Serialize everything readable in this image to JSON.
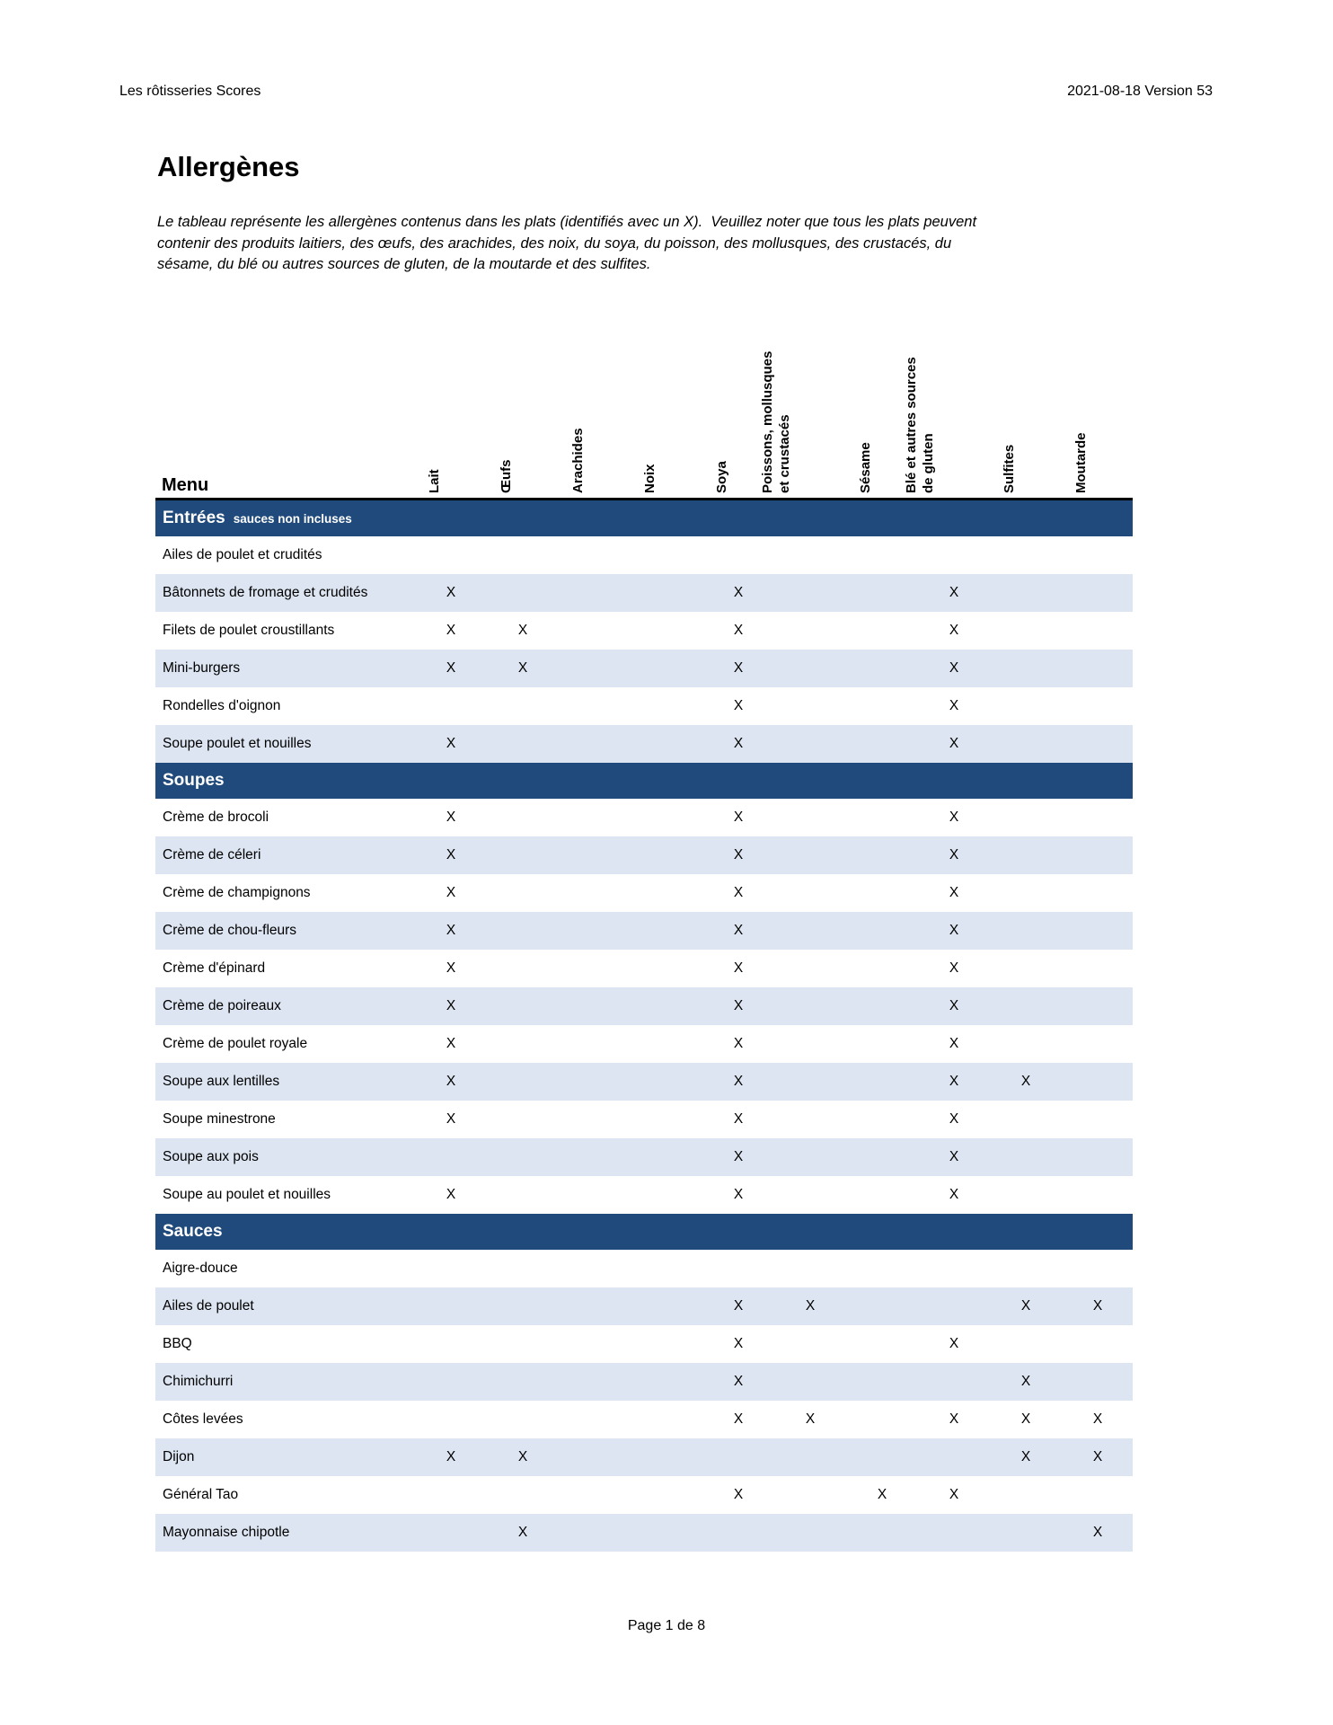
{
  "page_header": {
    "left": "Les rôtisseries Scores",
    "right": "2021-08-18 Version 53"
  },
  "title": "Allergènes",
  "intro_lines": [
    "Le tableau représente les allergènes contenus dans les plats (identifiés avec un X).  Veuillez noter que tous les plats peuvent",
    "contenir des produits laitiers, des œufs, des arachides, des noix, du soya, du poisson, des mollusques, des crustacés, du",
    "sésame, du blé ou autres sources de gluten, de la moutarde et des sulfites."
  ],
  "footer": {
    "text": "Page 1 de 8"
  },
  "colors": {
    "band_bg": "#1F4A7B",
    "row_alt_bg": "#DCE5F1",
    "rule": "#000000"
  },
  "table": {
    "menu_label": "Menu",
    "mark_symbol": "X",
    "columns": [
      {
        "id": "lait",
        "label_lines": [
          "Lait"
        ]
      },
      {
        "id": "oeufs",
        "label_lines": [
          "Œufs"
        ]
      },
      {
        "id": "arachides",
        "label_lines": [
          "Arachides"
        ]
      },
      {
        "id": "noix",
        "label_lines": [
          "Noix"
        ]
      },
      {
        "id": "soya",
        "label_lines": [
          "Soya"
        ]
      },
      {
        "id": "poissons",
        "label_lines": [
          "Poissons, mollusques",
          "et crustacés"
        ]
      },
      {
        "id": "sesame",
        "label_lines": [
          "Sésame"
        ]
      },
      {
        "id": "ble",
        "label_lines": [
          "Blé et autres sources",
          "de gluten"
        ]
      },
      {
        "id": "sulfites",
        "label_lines": [
          "Sulfites"
        ]
      },
      {
        "id": "moutarde",
        "label_lines": [
          "Moutarde"
        ]
      }
    ],
    "sections": [
      {
        "title": "Entrées",
        "subtitle": "sauces non incluses",
        "rows": [
          {
            "label": "Ailes de poulet et crudités",
            "marks": []
          },
          {
            "label": "Bâtonnets de fromage et crudités",
            "marks": [
              0,
              4,
              7
            ]
          },
          {
            "label": "Filets de poulet croustillants",
            "marks": [
              0,
              1,
              4,
              7
            ]
          },
          {
            "label": "Mini-burgers",
            "marks": [
              0,
              1,
              4,
              7
            ]
          },
          {
            "label": "Rondelles d'oignon",
            "marks": [
              4,
              7
            ]
          },
          {
            "label": "Soupe poulet et nouilles",
            "marks": [
              0,
              4,
              7
            ]
          }
        ]
      },
      {
        "title": "Soupes",
        "subtitle": "",
        "rows": [
          {
            "label": "Crème de brocoli",
            "marks": [
              0,
              4,
              7
            ]
          },
          {
            "label": "Crème de céleri",
            "marks": [
              0,
              4,
              7
            ]
          },
          {
            "label": "Crème de champignons",
            "marks": [
              0,
              4,
              7
            ]
          },
          {
            "label": "Crème de chou-fleurs",
            "marks": [
              0,
              4,
              7
            ]
          },
          {
            "label": "Crème d'épinard",
            "marks": [
              0,
              4,
              7
            ]
          },
          {
            "label": "Crème de poireaux",
            "marks": [
              0,
              4,
              7
            ]
          },
          {
            "label": "Crème de poulet royale",
            "marks": [
              0,
              4,
              7
            ]
          },
          {
            "label": "Soupe aux lentilles",
            "marks": [
              0,
              4,
              7,
              8
            ]
          },
          {
            "label": "Soupe minestrone",
            "marks": [
              0,
              4,
              7
            ]
          },
          {
            "label": "Soupe aux pois",
            "marks": [
              4,
              7
            ]
          },
          {
            "label": "Soupe au poulet et nouilles",
            "marks": [
              0,
              4,
              7
            ]
          }
        ]
      },
      {
        "title": "Sauces",
        "subtitle": "",
        "rows": [
          {
            "label": "Aigre-douce",
            "marks": []
          },
          {
            "label": "Ailes de poulet",
            "marks": [
              4,
              5,
              8,
              9
            ]
          },
          {
            "label": "BBQ",
            "marks": [
              4,
              7
            ]
          },
          {
            "label": "Chimichurri",
            "marks": [
              4,
              8
            ]
          },
          {
            "label": "Côtes levées",
            "marks": [
              4,
              5,
              7,
              8,
              9
            ]
          },
          {
            "label": "Dijon",
            "marks": [
              0,
              1,
              8,
              9
            ]
          },
          {
            "label": "Général Tao",
            "marks": [
              4,
              6,
              7
            ]
          },
          {
            "label": "Mayonnaise chipotle",
            "marks": [
              1,
              9
            ]
          }
        ]
      }
    ]
  }
}
